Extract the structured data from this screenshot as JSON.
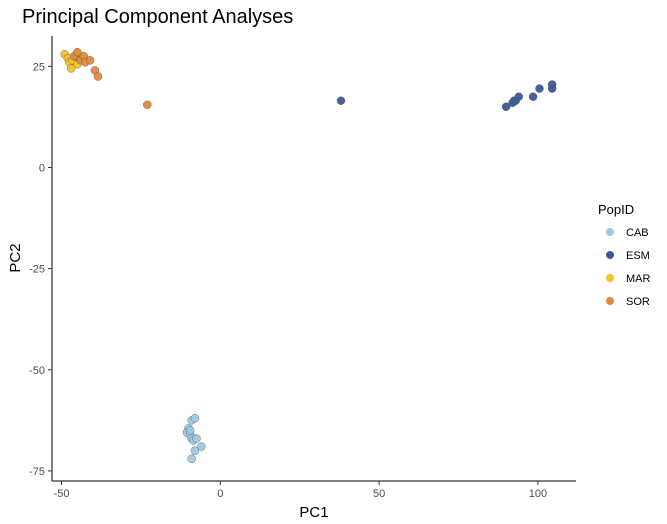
{
  "chart_data": {
    "type": "scatter",
    "title": "Principal Component Analyses",
    "xlabel": "PC1",
    "ylabel": "PC2",
    "xlim": [
      -53,
      112
    ],
    "ylim": [
      -77.5,
      32.5
    ],
    "xticks": [
      -50,
      0,
      50,
      100
    ],
    "yticks": [
      -75,
      -50,
      -25,
      0,
      25
    ],
    "grid": false,
    "legend": {
      "title": "PopID",
      "position": "right"
    },
    "series": [
      {
        "name": "CAB",
        "color": "#9ecae1",
        "points": [
          [
            -9,
            -62.5
          ],
          [
            -8,
            -62
          ],
          [
            -10,
            -64.5
          ],
          [
            -10.5,
            -65.5
          ],
          [
            -9.5,
            -66
          ],
          [
            -9,
            -67
          ],
          [
            -8.5,
            -67.5
          ],
          [
            -7.5,
            -67
          ],
          [
            -9.5,
            -65
          ],
          [
            -6,
            -69
          ],
          [
            -8,
            -70
          ],
          [
            -9,
            -72
          ]
        ]
      },
      {
        "name": "ESM",
        "color": "#3c5a99",
        "points": [
          [
            38,
            16.5
          ],
          [
            90,
            15
          ],
          [
            92,
            16
          ],
          [
            92.5,
            16.5
          ],
          [
            93,
            16.5
          ],
          [
            94,
            17.5
          ],
          [
            98.5,
            17.5
          ],
          [
            100.5,
            19.5
          ],
          [
            104.5,
            19.5
          ],
          [
            104.5,
            20.5
          ]
        ]
      },
      {
        "name": "MAR",
        "color": "#f5c02c",
        "points": [
          [
            -49,
            28
          ],
          [
            -48,
            27
          ],
          [
            -47.5,
            26
          ],
          [
            -47,
            24.5
          ],
          [
            -46.5,
            26.5
          ],
          [
            -46,
            27.5
          ],
          [
            -45,
            28
          ],
          [
            -45,
            25.5
          ],
          [
            -44,
            27
          ]
        ]
      },
      {
        "name": "SOR",
        "color": "#e08a3c",
        "points": [
          [
            -46,
            27.5
          ],
          [
            -45,
            28.5
          ],
          [
            -44,
            26.5
          ],
          [
            -43,
            27.5
          ],
          [
            -42.5,
            26
          ],
          [
            -41,
            26.5
          ],
          [
            -39.5,
            24
          ],
          [
            -38.5,
            22.5
          ],
          [
            -23,
            15.5
          ]
        ]
      }
    ]
  }
}
